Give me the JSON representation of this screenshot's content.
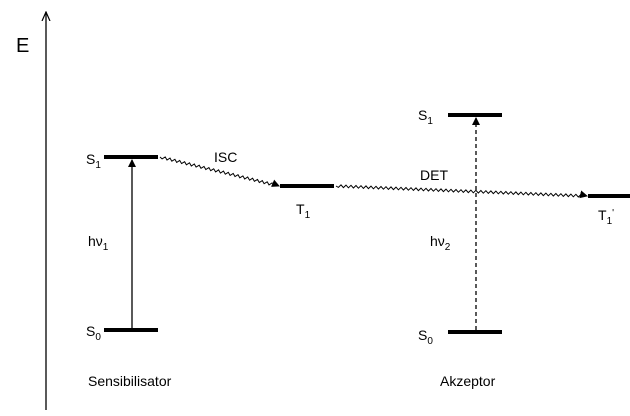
{
  "axis_label": "E",
  "sensitizer": {
    "name": "Sensibilisator",
    "levels": [
      {
        "symbol": "S",
        "sub": "1"
      },
      {
        "symbol": "S",
        "sub": "0"
      },
      {
        "symbol": "T",
        "sub": "1"
      }
    ],
    "excitation": {
      "symbol": "hν",
      "sub": "1"
    }
  },
  "acceptor": {
    "name": "Akzeptor",
    "levels": [
      {
        "symbol": "S",
        "sub": "1"
      },
      {
        "symbol": "S",
        "sub": "0"
      },
      {
        "symbol": "T",
        "sub": "1",
        "prime": "'"
      }
    ],
    "excitation": {
      "symbol": "hν",
      "sub": "2"
    }
  },
  "transitions": [
    {
      "label": "ISC"
    },
    {
      "label": "DET"
    }
  ]
}
